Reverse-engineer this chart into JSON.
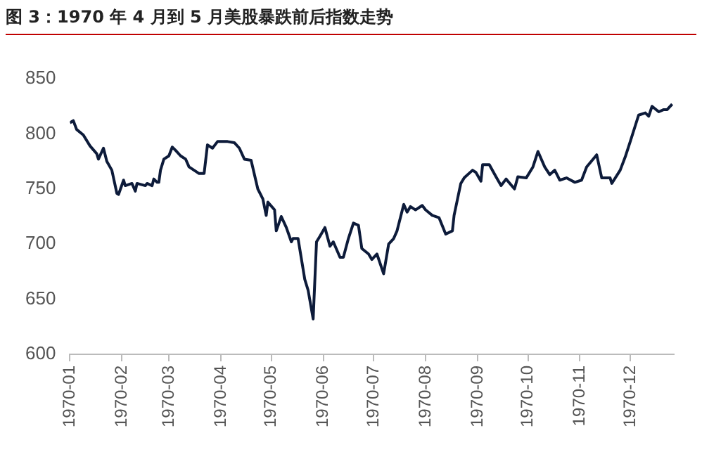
{
  "chart_data": {
    "type": "line",
    "title": "图 3：1970 年 4 月到 5 月美股暴跌前后指数走势",
    "x": [
      "1970-01-01",
      "1970-01-03",
      "1970-01-05",
      "1970-01-09",
      "1970-01-13",
      "1970-01-17",
      "1970-01-18",
      "1970-01-21",
      "1970-01-23",
      "1970-01-26",
      "1970-01-29",
      "1970-01-30",
      "1970-02-02",
      "1970-02-03",
      "1970-02-07",
      "1970-02-09",
      "1970-02-10",
      "1970-02-15",
      "1970-02-16",
      "1970-02-19",
      "1970-02-20",
      "1970-02-22",
      "1970-02-23",
      "1970-02-24",
      "1970-02-26",
      "1970-03-01",
      "1970-03-03",
      "1970-03-05",
      "1970-03-08",
      "1970-03-11",
      "1970-03-13",
      "1970-03-16",
      "1970-03-19",
      "1970-03-22",
      "1970-03-24",
      "1970-03-27",
      "1970-03-30",
      "1970-04-05",
      "1970-04-09",
      "1970-04-12",
      "1970-04-15",
      "1970-04-19",
      "1970-04-23",
      "1970-04-26",
      "1970-04-28",
      "1970-04-29",
      "1970-05-03",
      "1970-05-04",
      "1970-05-07",
      "1970-05-10",
      "1970-05-13",
      "1970-05-14",
      "1970-05-17",
      "1970-05-21",
      "1970-05-23",
      "1970-05-26",
      "1970-05-28",
      "1970-05-30",
      "1970-06-02",
      "1970-06-05",
      "1970-06-07",
      "1970-06-11",
      "1970-06-13",
      "1970-06-16",
      "1970-06-19",
      "1970-06-22",
      "1970-06-24",
      "1970-06-28",
      "1970-06-30",
      "1970-07-03",
      "1970-07-07",
      "1970-07-10",
      "1970-07-13",
      "1970-07-15",
      "1970-07-19",
      "1970-07-21",
      "1970-07-23",
      "1970-07-26",
      "1970-07-30",
      "1970-08-01",
      "1970-08-05",
      "1970-08-09",
      "1970-08-13",
      "1970-08-17",
      "1970-08-18",
      "1970-08-22",
      "1970-08-24",
      "1970-08-29",
      "1970-08-31",
      "1970-09-03",
      "1970-09-04",
      "1970-09-08",
      "1970-09-12",
      "1970-09-15",
      "1970-09-18",
      "1970-09-23",
      "1970-09-25",
      "1970-09-30",
      "1970-10-04",
      "1970-10-07",
      "1970-10-11",
      "1970-10-14",
      "1970-10-17",
      "1970-10-20",
      "1970-10-24",
      "1970-10-29",
      "1970-11-02",
      "1970-11-05",
      "1970-11-11",
      "1970-11-14",
      "1970-11-19",
      "1970-11-20",
      "1970-11-25",
      "1970-11-28",
      "1970-12-01",
      "1970-12-06",
      "1970-12-10",
      "1970-12-12",
      "1970-12-14",
      "1970-12-18",
      "1970-12-21",
      "1970-12-23",
      "1970-12-26"
    ],
    "series": [
      {
        "color": "#0d1b3a",
        "values": [
          810,
          812,
          804,
          799,
          789,
          782,
          777,
          787,
          775,
          767,
          746,
          745,
          758,
          753,
          755,
          748,
          755,
          753,
          755,
          753,
          759,
          756,
          756,
          767,
          777,
          780,
          788,
          785,
          780,
          777,
          770,
          767,
          764,
          764,
          790,
          787,
          793,
          793,
          792,
          787,
          777,
          776,
          750,
          741,
          726,
          738,
          731,
          712,
          725,
          715,
          702,
          705,
          705,
          668,
          658,
          632,
          702,
          707,
          715,
          698,
          702,
          688,
          688,
          705,
          719,
          717,
          696,
          691,
          686,
          691,
          673,
          700,
          705,
          712,
          736,
          729,
          734,
          731,
          735,
          731,
          726,
          724,
          709,
          712,
          726,
          755,
          760,
          767,
          765,
          757,
          772,
          772,
          761,
          753,
          759,
          750,
          761,
          760,
          770,
          784,
          770,
          763,
          767,
          758,
          760,
          756,
          758,
          770,
          781,
          760,
          760,
          755,
          767,
          779,
          793,
          817,
          819,
          816,
          825,
          820,
          822,
          822,
          827
        ]
      }
    ],
    "xlim": [
      "1970-01-01",
      "1970-12-27"
    ],
    "xticks": [
      "1970-01",
      "1970-02",
      "1970-03",
      "1970-04",
      "1970-05",
      "1970-06",
      "1970-07",
      "1970-08",
      "1970-09",
      "1970-10",
      "1970-11",
      "1970-12"
    ],
    "ylim": [
      600,
      850
    ],
    "yticks": [
      600,
      650,
      700,
      750,
      800,
      850
    ],
    "grid": false,
    "legend": false,
    "marker": "none",
    "line_style": "solid"
  }
}
